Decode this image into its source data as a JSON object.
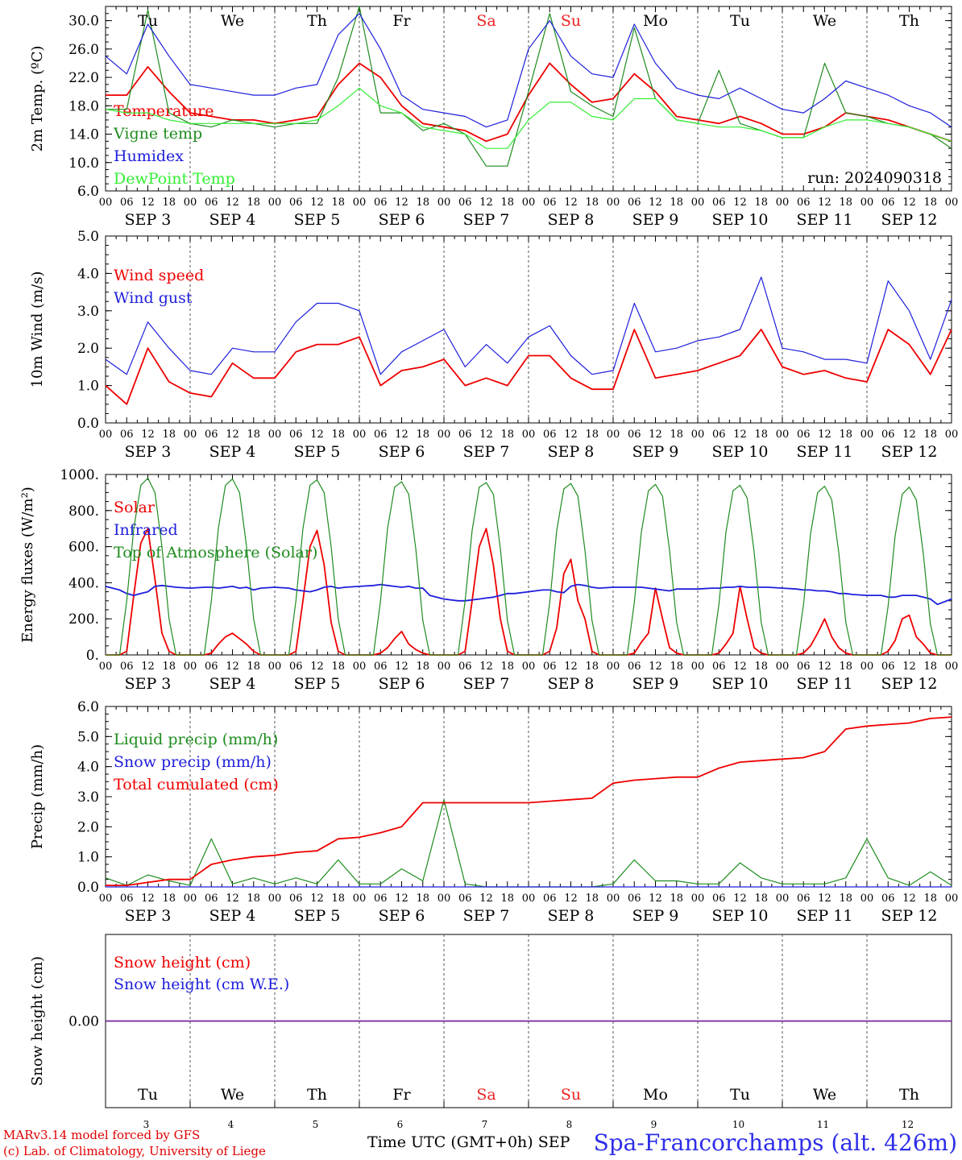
{
  "header": {
    "credit_line1": "MARv3.14 model forced by GFS",
    "credit_line2": "(c) Lab. of Climatology, University of Liege",
    "x_axis_title": "Time UTC (GMT+0h) SEP",
    "station": "Spa-Francorchamps (alt. 426m)"
  },
  "colors": {
    "red": "#ee0000",
    "green": "#1e8c1e",
    "blue": "#1e1edc",
    "lightgreen": "#33ee33",
    "weekend": "#ee2222",
    "purple": "#7a2a9a"
  },
  "axis": {
    "hour_ticks": [
      "00",
      "06",
      "12",
      "18"
    ],
    "final_tick": "00",
    "dates": [
      "SEP  3",
      "SEP  4",
      "SEP  5",
      "SEP  6",
      "SEP  7",
      "SEP  8",
      "SEP  9",
      "SEP 10",
      "SEP 11",
      "SEP 12"
    ],
    "weekdays": [
      "Tu",
      "We",
      "Th",
      "Fr",
      "Sa",
      "Su",
      "Mo",
      "Tu",
      "We",
      "Th"
    ],
    "weekend_days": [
      "Sa",
      "Su"
    ],
    "day_numbers": [
      "3",
      "4",
      "5",
      "6",
      "7",
      "8",
      "9",
      "10",
      "11",
      "12"
    ]
  },
  "chart_data": [
    {
      "type": "line",
      "id": "temperature",
      "ylabel": "2m Temp. (ºC)",
      "ylim": [
        6,
        32
      ],
      "yticks": [
        "6.0",
        "10.0",
        "14.0",
        "18.0",
        "22.0",
        "26.0",
        "30.0"
      ],
      "annotation": "run: 2024090318",
      "x_hours": [
        0,
        6,
        12,
        18,
        24,
        30,
        36,
        42,
        48,
        54,
        60,
        66,
        72,
        78,
        84,
        90,
        96,
        102,
        108,
        114,
        120,
        126,
        132,
        138,
        144,
        150,
        156,
        162,
        168,
        174,
        180,
        186,
        192,
        198,
        204,
        210,
        216,
        222,
        228,
        234,
        240
      ],
      "series": [
        {
          "name": "Temperature",
          "color": "red",
          "values": [
            19.5,
            19.5,
            23.5,
            20,
            17,
            16.5,
            16,
            16,
            15.5,
            16,
            16.5,
            21,
            24,
            22,
            18,
            15.5,
            15,
            14.5,
            13,
            14,
            19.5,
            24,
            21,
            18.5,
            19,
            22.5,
            20,
            16.5,
            16,
            15.5,
            16.5,
            15.5,
            14,
            14,
            15,
            17,
            16.5,
            16,
            15,
            14,
            13
          ]
        },
        {
          "name": "Vigne temp",
          "color": "green",
          "values": [
            17.5,
            17.5,
            31.5,
            17,
            15.5,
            15,
            16,
            15.5,
            15,
            15.5,
            15.5,
            22,
            32,
            17,
            17,
            14.5,
            15.5,
            14,
            9.5,
            9.5,
            20,
            31,
            20,
            18,
            16.5,
            29,
            19,
            16,
            15.5,
            23,
            15.5,
            14.5,
            13.5,
            13.5,
            24,
            17,
            16.5,
            15.5,
            15,
            14,
            12
          ]
        },
        {
          "name": "Humidex",
          "color": "blue",
          "values": [
            25,
            22.5,
            29.5,
            25,
            21,
            20.5,
            20,
            19.5,
            19.5,
            20.5,
            21,
            28,
            31,
            26,
            19.5,
            17.5,
            17,
            16.5,
            15,
            16,
            26,
            30,
            25,
            22.5,
            22,
            29.5,
            24,
            20.5,
            19.5,
            19,
            20.5,
            19,
            17.5,
            17,
            19,
            21.5,
            20.5,
            19.5,
            18,
            17,
            15
          ]
        },
        {
          "name": "DewPoint Temp",
          "color": "lightgreen",
          "values": [
            17.5,
            17,
            17,
            16,
            15.5,
            15.5,
            15.5,
            15.5,
            15.5,
            15.5,
            16,
            18,
            20.5,
            18,
            17,
            15,
            14.5,
            14,
            12,
            12,
            16,
            18.5,
            18.5,
            16.5,
            16,
            19,
            19,
            16,
            15.5,
            15,
            15,
            14.5,
            13.5,
            13.5,
            15,
            16,
            16,
            15.5,
            15,
            14,
            13
          ]
        }
      ]
    },
    {
      "type": "line",
      "id": "wind",
      "ylabel": "10m Wind (m/s)",
      "ylim": [
        0,
        5
      ],
      "yticks": [
        "0.0",
        "1.0",
        "2.0",
        "3.0",
        "4.0",
        "5.0"
      ],
      "x_hours": [
        0,
        6,
        12,
        18,
        24,
        30,
        36,
        42,
        48,
        54,
        60,
        66,
        72,
        78,
        84,
        90,
        96,
        102,
        108,
        114,
        120,
        126,
        132,
        138,
        144,
        150,
        156,
        162,
        168,
        174,
        180,
        186,
        192,
        198,
        204,
        210,
        216,
        222,
        228,
        234,
        240
      ],
      "series": [
        {
          "name": "Wind speed",
          "color": "red",
          "values": [
            1.0,
            0.5,
            2.0,
            1.1,
            0.8,
            0.7,
            1.6,
            1.2,
            1.2,
            1.9,
            2.1,
            2.1,
            2.3,
            1.0,
            1.4,
            1.5,
            1.7,
            1.0,
            1.2,
            1.0,
            1.8,
            1.8,
            1.2,
            0.9,
            0.9,
            2.5,
            1.2,
            1.3,
            1.4,
            1.6,
            1.8,
            2.5,
            1.5,
            1.3,
            1.4,
            1.2,
            1.1,
            2.5,
            2.1,
            1.3,
            2.5
          ]
        },
        {
          "name": "Wind gust",
          "color": "blue",
          "values": [
            1.7,
            1.3,
            2.7,
            2.0,
            1.4,
            1.3,
            2.0,
            1.9,
            1.9,
            2.7,
            3.2,
            3.2,
            3.0,
            1.3,
            1.9,
            2.2,
            2.5,
            1.5,
            2.1,
            1.6,
            2.3,
            2.6,
            1.8,
            1.3,
            1.4,
            3.2,
            1.9,
            2.0,
            2.2,
            2.3,
            2.5,
            3.9,
            2.0,
            1.9,
            1.7,
            1.7,
            1.6,
            3.8,
            3.0,
            1.7,
            3.3
          ]
        }
      ]
    },
    {
      "type": "line",
      "id": "energy",
      "ylabel": "Energy fluxes (W/m²)",
      "ylim": [
        0,
        1000
      ],
      "yticks": [
        "0.",
        "200.",
        "400.",
        "600.",
        "800.",
        "1000."
      ],
      "x_hours": [
        0,
        4,
        6,
        8,
        10,
        12,
        14,
        16,
        18,
        20,
        24,
        28,
        30,
        32,
        34,
        36,
        38,
        40,
        42,
        44,
        48,
        52,
        54,
        56,
        58,
        60,
        62,
        64,
        66,
        68,
        72,
        76,
        78,
        80,
        82,
        84,
        86,
        88,
        90,
        92,
        96,
        100,
        102,
        104,
        106,
        108,
        110,
        112,
        114,
        116,
        120,
        124,
        126,
        128,
        130,
        132,
        134,
        136,
        138,
        140,
        144,
        148,
        150,
        152,
        154,
        156,
        158,
        160,
        162,
        164,
        168,
        172,
        174,
        176,
        178,
        180,
        182,
        184,
        186,
        188,
        192,
        196,
        198,
        200,
        202,
        204,
        206,
        208,
        210,
        212,
        216,
        220,
        222,
        224,
        226,
        228,
        230,
        232,
        234,
        236,
        240
      ],
      "series": [
        {
          "name": "Solar",
          "color": "red",
          "values": [
            0,
            0,
            20,
            330,
            620,
            700,
            420,
            120,
            20,
            0,
            0,
            0,
            10,
            60,
            100,
            120,
            90,
            60,
            20,
            0,
            0,
            0,
            20,
            300,
            600,
            690,
            500,
            180,
            20,
            0,
            0,
            0,
            10,
            40,
            90,
            130,
            60,
            30,
            10,
            0,
            0,
            0,
            20,
            300,
            600,
            700,
            500,
            200,
            20,
            0,
            0,
            0,
            20,
            150,
            450,
            530,
            300,
            200,
            20,
            0,
            0,
            0,
            10,
            70,
            120,
            370,
            200,
            40,
            10,
            0,
            0,
            0,
            10,
            60,
            120,
            380,
            200,
            40,
            10,
            0,
            0,
            0,
            10,
            50,
            120,
            200,
            100,
            40,
            10,
            0,
            0,
            0,
            20,
            80,
            200,
            220,
            100,
            60,
            10,
            0,
            0
          ]
        },
        {
          "name": "Infrared",
          "color": "blue",
          "values": [
            380,
            360,
            340,
            330,
            340,
            350,
            380,
            385,
            380,
            375,
            370,
            375,
            375,
            370,
            375,
            380,
            370,
            375,
            360,
            370,
            375,
            370,
            360,
            355,
            350,
            360,
            375,
            380,
            370,
            375,
            380,
            385,
            390,
            385,
            380,
            375,
            380,
            370,
            370,
            330,
            310,
            300,
            300,
            305,
            310,
            315,
            320,
            330,
            340,
            340,
            350,
            360,
            360,
            350,
            345,
            380,
            390,
            385,
            375,
            370,
            375,
            375,
            375,
            375,
            370,
            365,
            360,
            355,
            365,
            365,
            365,
            370,
            370,
            375,
            375,
            380,
            375,
            375,
            375,
            375,
            370,
            365,
            360,
            360,
            355,
            355,
            350,
            340,
            340,
            335,
            330,
            330,
            320,
            320,
            330,
            330,
            330,
            320,
            310,
            280,
            310
          ]
        },
        {
          "name": "Top of Atmosphere (Solar)",
          "color": "green",
          "values": [
            0,
            0,
            300,
            700,
            940,
            980,
            900,
            600,
            200,
            0,
            0,
            0,
            300,
            700,
            940,
            975,
            900,
            600,
            200,
            0,
            0,
            0,
            300,
            700,
            940,
            970,
            900,
            600,
            200,
            0,
            0,
            0,
            300,
            700,
            930,
            960,
            890,
            590,
            190,
            0,
            0,
            0,
            300,
            690,
            930,
            955,
            890,
            590,
            190,
            0,
            0,
            0,
            290,
            690,
            920,
            950,
            880,
            580,
            190,
            0,
            0,
            0,
            290,
            680,
            910,
            945,
            880,
            580,
            180,
            0,
            0,
            0,
            280,
            680,
            910,
            940,
            870,
            570,
            180,
            0,
            0,
            0,
            280,
            670,
            900,
            935,
            860,
            570,
            180,
            0,
            0,
            0,
            270,
            660,
            890,
            930,
            860,
            560,
            170,
            0,
            0
          ]
        }
      ]
    },
    {
      "type": "line",
      "id": "precip",
      "ylabel": "Precip (mm/h)",
      "ylim": [
        0,
        6
      ],
      "yticks": [
        "0.0",
        "1.0",
        "2.0",
        "3.0",
        "4.0",
        "5.0",
        "6.0"
      ],
      "x_hours": [
        0,
        6,
        12,
        18,
        24,
        30,
        36,
        42,
        48,
        54,
        60,
        66,
        72,
        78,
        84,
        90,
        96,
        102,
        108,
        114,
        120,
        126,
        132,
        138,
        144,
        150,
        156,
        162,
        168,
        174,
        180,
        186,
        192,
        198,
        204,
        210,
        216,
        222,
        228,
        234,
        240
      ],
      "series": [
        {
          "name": "Liquid precip (mm/h)",
          "color": "green",
          "values": [
            0.3,
            0.05,
            0.4,
            0.2,
            0.05,
            1.6,
            0.1,
            0.3,
            0.1,
            0.3,
            0.1,
            0.9,
            0.1,
            0.1,
            0.6,
            0.2,
            2.9,
            0.1,
            0.0,
            0.0,
            0.0,
            0.0,
            0.0,
            0.0,
            0.1,
            0.9,
            0.2,
            0.2,
            0.1,
            0.1,
            0.8,
            0.3,
            0.1,
            0.1,
            0.1,
            0.3,
            1.6,
            0.3,
            0.05,
            0.5,
            0.05
          ]
        },
        {
          "name": "Snow precip (mm/h)",
          "color": "blue",
          "values": [
            0,
            0,
            0,
            0,
            0,
            0,
            0,
            0,
            0,
            0,
            0,
            0,
            0,
            0,
            0,
            0,
            0,
            0,
            0,
            0,
            0,
            0,
            0,
            0,
            0,
            0,
            0,
            0,
            0,
            0,
            0,
            0,
            0,
            0,
            0,
            0,
            0,
            0,
            0,
            0,
            0
          ]
        },
        {
          "name": "Total cumulated (cm)",
          "color": "red",
          "values": [
            0.05,
            0.05,
            0.15,
            0.25,
            0.25,
            0.75,
            0.9,
            1.0,
            1.05,
            1.15,
            1.2,
            1.6,
            1.65,
            1.8,
            2.0,
            2.8,
            2.8,
            2.8,
            2.8,
            2.8,
            2.8,
            2.85,
            2.9,
            2.95,
            3.45,
            3.55,
            3.6,
            3.65,
            3.65,
            3.95,
            4.15,
            4.2,
            4.25,
            4.3,
            4.5,
            5.25,
            5.35,
            5.4,
            5.45,
            5.6,
            5.65
          ]
        }
      ]
    },
    {
      "type": "line",
      "id": "snow",
      "ylabel": "Snow height (cm)",
      "ylim": [
        -1,
        1
      ],
      "yticks": [
        "0.00"
      ],
      "x_hours": [
        0,
        240
      ],
      "series": [
        {
          "name": "Snow height (cm)",
          "color": "red",
          "values": [
            0,
            0
          ]
        },
        {
          "name": "Snow height (cm W.E.)",
          "color": "blue",
          "values": [
            0,
            0
          ]
        }
      ]
    }
  ]
}
